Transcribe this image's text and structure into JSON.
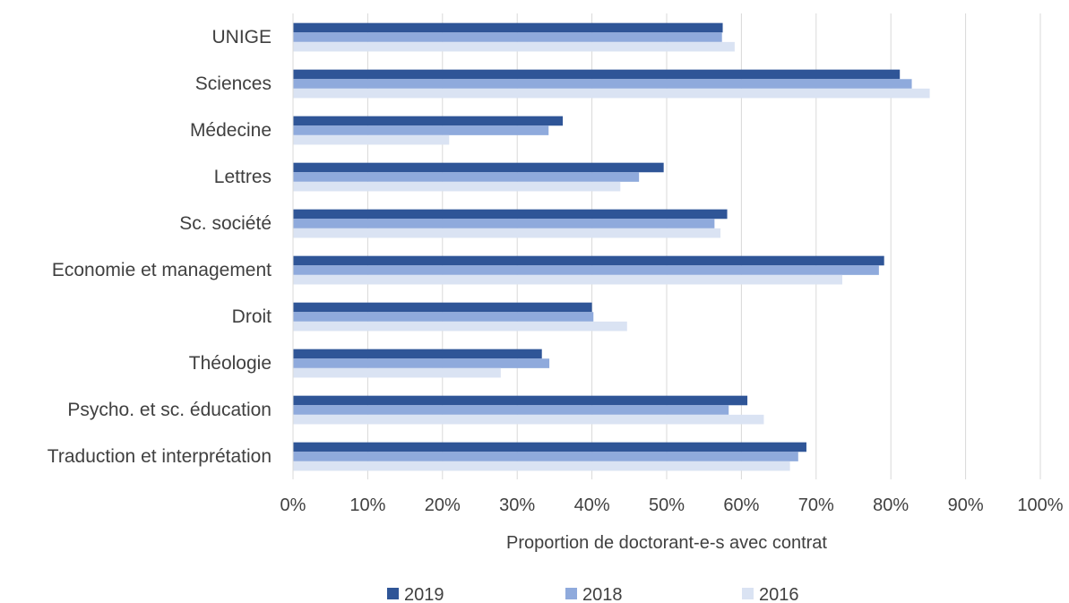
{
  "chart_data": {
    "type": "bar",
    "orientation": "horizontal",
    "title": "",
    "xlabel": "Proportion de doctorant-e-s avec contrat",
    "ylabel": "",
    "xlim": [
      0,
      100
    ],
    "x_ticks": [
      "0%",
      "10%",
      "20%",
      "30%",
      "40%",
      "50%",
      "60%",
      "70%",
      "80%",
      "90%",
      "100%"
    ],
    "categories": [
      "UNIGE",
      "Sciences",
      "Médecine",
      "Lettres",
      "Sc. société",
      "Economie et management",
      "Droit",
      "Théologie",
      "Psycho. et sc. éducation",
      "Traduction et interprétation"
    ],
    "series": [
      {
        "name": "2019",
        "color": "#2F5597",
        "values": [
          57.5,
          81.2,
          36.1,
          49.6,
          58.1,
          79.1,
          40.0,
          33.3,
          60.8,
          68.7
        ]
      },
      {
        "name": "2018",
        "color": "#8FAADC",
        "values": [
          57.4,
          82.8,
          34.2,
          46.3,
          56.4,
          78.4,
          40.2,
          34.3,
          58.3,
          67.6
        ]
      },
      {
        "name": "2016",
        "color": "#DAE3F3",
        "values": [
          59.1,
          85.2,
          20.9,
          43.8,
          57.2,
          73.5,
          44.7,
          27.8,
          63.0,
          66.5
        ]
      }
    ],
    "grid": "vertical",
    "legend_position": "bottom"
  }
}
